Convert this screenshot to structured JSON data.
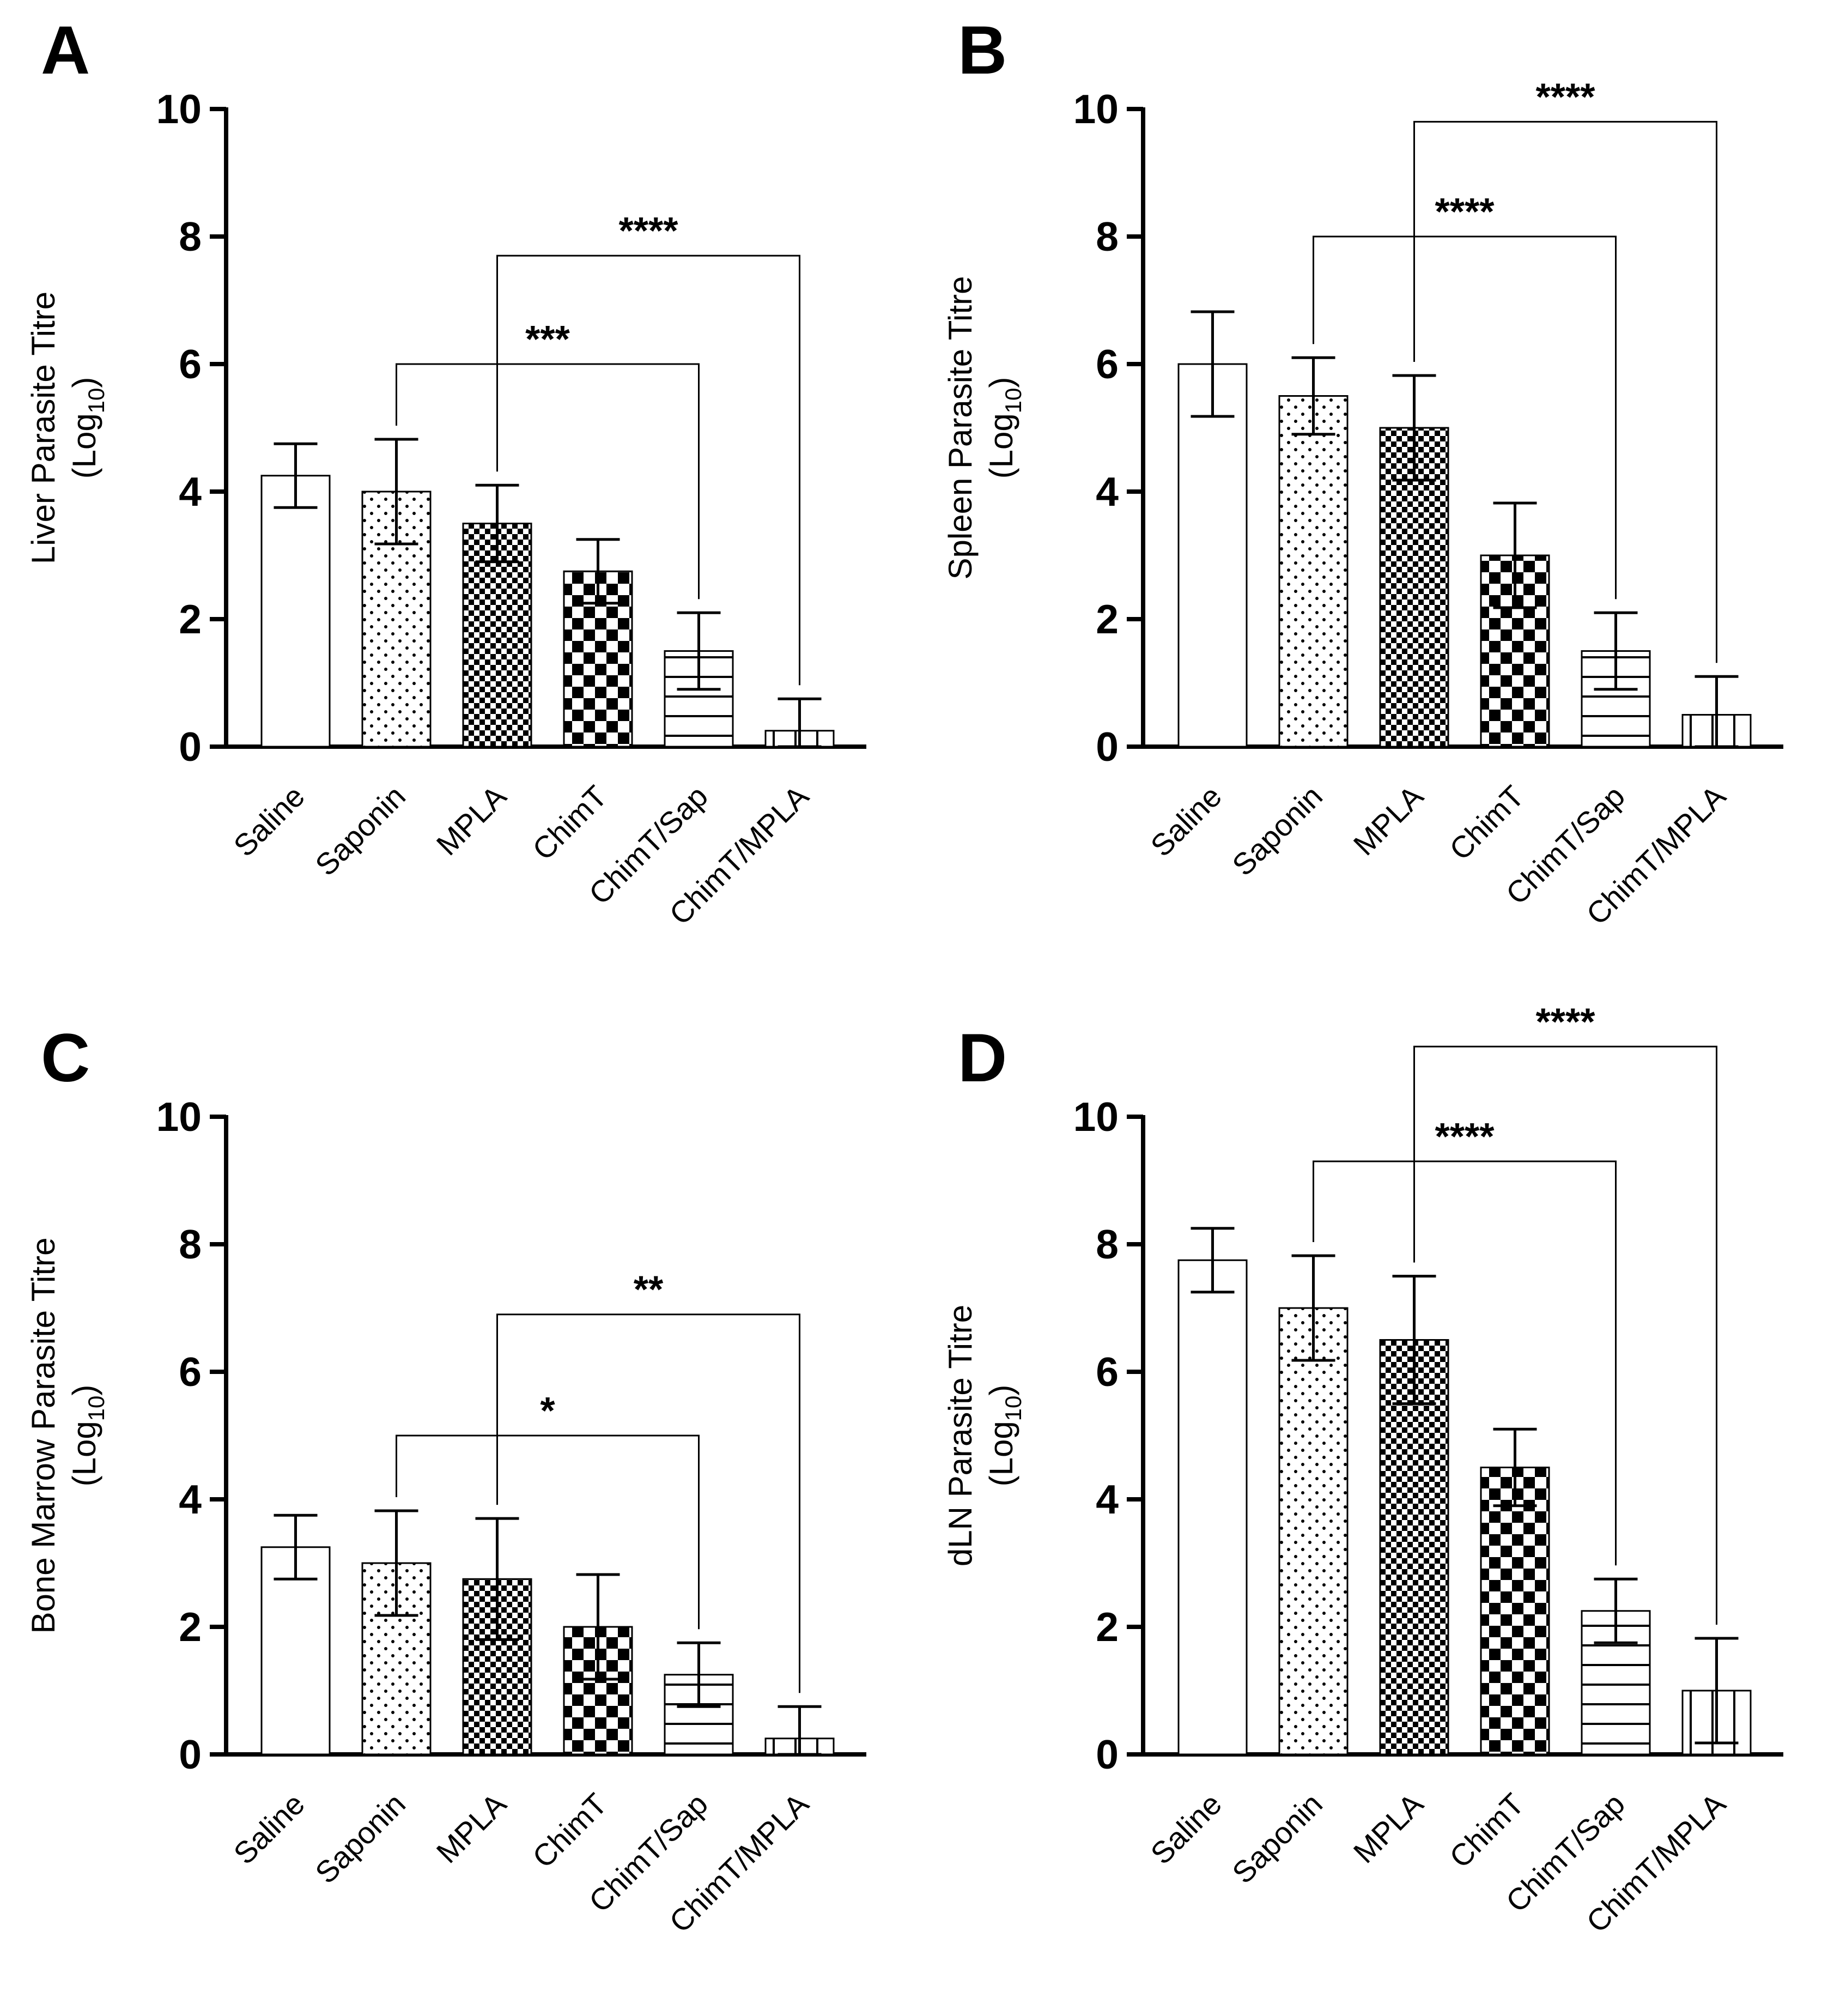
{
  "chart_data": [
    {
      "panel": "A",
      "type": "bar",
      "ylabel_main": "Liver Parasite Titre",
      "ylabel_sub": "(Log",
      "ylabel_subscript": "10",
      "ylabel_close": ")",
      "ylim": [
        0,
        10
      ],
      "yticks": [
        "0",
        "2",
        "4",
        "6",
        "8",
        "10"
      ],
      "categories": [
        "Saline",
        "Saponin",
        "MPLA",
        "ChimT",
        "ChimT/Sap",
        "ChimT/MPLA"
      ],
      "values": [
        4.25,
        4.0,
        3.5,
        2.75,
        1.5,
        0.25
      ],
      "errors": [
        0.5,
        0.82,
        0.6,
        0.5,
        0.6,
        0.5
      ],
      "patterns": [
        "none",
        "dots",
        "fine-check",
        "check",
        "hlines",
        "vlines"
      ],
      "significance": [
        {
          "from": 1,
          "to": 4,
          "y": 6.0,
          "label": "***"
        },
        {
          "from": 2,
          "to": 5,
          "y": 7.7,
          "label": "****"
        }
      ]
    },
    {
      "panel": "B",
      "type": "bar",
      "ylabel_main": "Spleen Parasite Titre",
      "ylabel_sub": "(Log",
      "ylabel_subscript": "10",
      "ylabel_close": ")",
      "ylim": [
        0,
        10
      ],
      "yticks": [
        "0",
        "2",
        "4",
        "6",
        "8",
        "10"
      ],
      "categories": [
        "Saline",
        "Saponin",
        "MPLA",
        "ChimT",
        "ChimT/Sap",
        "ChimT/MPLA"
      ],
      "values": [
        6.0,
        5.5,
        5.0,
        3.0,
        1.5,
        0.5
      ],
      "errors": [
        0.82,
        0.6,
        0.82,
        0.82,
        0.6,
        0.6
      ],
      "patterns": [
        "none",
        "dots",
        "fine-check",
        "check",
        "hlines",
        "vlines"
      ],
      "significance": [
        {
          "from": 1,
          "to": 4,
          "y": 8.0,
          "label": "****"
        },
        {
          "from": 2,
          "to": 5,
          "y": 9.8,
          "label": "****"
        }
      ]
    },
    {
      "panel": "C",
      "type": "bar",
      "ylabel_main": "Bone Marrow Parasite Titre",
      "ylabel_sub": "(Log",
      "ylabel_subscript": "10",
      "ylabel_close": ")",
      "ylim": [
        0,
        10
      ],
      "yticks": [
        "0",
        "2",
        "4",
        "6",
        "8",
        "10"
      ],
      "categories": [
        "Saline",
        "Saponin",
        "MPLA",
        "ChimT",
        "ChimT/Sap",
        "ChimT/MPLA"
      ],
      "values": [
        3.25,
        3.0,
        2.75,
        2.0,
        1.25,
        0.25
      ],
      "errors": [
        0.5,
        0.82,
        0.95,
        0.82,
        0.5,
        0.5
      ],
      "patterns": [
        "none",
        "dots",
        "fine-check",
        "check",
        "hlines",
        "vlines"
      ],
      "significance": [
        {
          "from": 1,
          "to": 4,
          "y": 5.0,
          "label": "*"
        },
        {
          "from": 2,
          "to": 5,
          "y": 6.9,
          "label": "**"
        }
      ]
    },
    {
      "panel": "D",
      "type": "bar",
      "ylabel_main": "dLN Parasite Titre",
      "ylabel_sub": "(Log",
      "ylabel_subscript": "10",
      "ylabel_close": ")",
      "ylim": [
        0,
        10
      ],
      "yticks": [
        "0",
        "2",
        "4",
        "6",
        "8",
        "10"
      ],
      "categories": [
        "Saline",
        "Saponin",
        "MPLA",
        "ChimT",
        "ChimT/Sap",
        "ChimT/MPLA"
      ],
      "values": [
        7.75,
        7.0,
        6.5,
        4.5,
        2.25,
        1.0
      ],
      "errors": [
        0.5,
        0.82,
        1.0,
        0.6,
        0.5,
        0.82
      ],
      "patterns": [
        "none",
        "dots",
        "fine-check",
        "check",
        "hlines",
        "vlines"
      ],
      "significance": [
        {
          "from": 1,
          "to": 4,
          "y": 9.3,
          "label": "****"
        },
        {
          "from": 2,
          "to": 5,
          "y": 11.1,
          "label": "****"
        }
      ]
    }
  ]
}
